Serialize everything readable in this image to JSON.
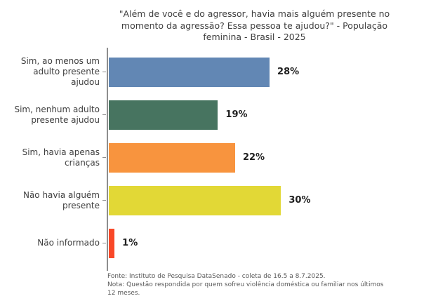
{
  "chart_data": {
    "type": "bar",
    "orientation": "horizontal",
    "title": "\"Além de você e do agressor, havia mais alguém presente no momento da agressão? Essa pessoa te ajudou?\" - População feminina - Brasil - 2025",
    "title_lines": [
      "\"Além de você e do agressor, havia mais alguém presente no",
      "momento da agressão? Essa pessoa te ajudou?\" - População",
      "feminina - Brasil - 2025"
    ],
    "categories": [
      "Sim, ao menos um adulto presente ajudou",
      "Sim, nenhum adulto presente ajudou",
      "Sim, havia apenas crianças",
      "Não havia alguém presente",
      "Não informado"
    ],
    "category_lines": [
      [
        "Sim, ao menos um",
        "adulto presente",
        "ajudou"
      ],
      [
        "Sim, nenhum adulto",
        "presente ajudou"
      ],
      [
        "Sim, havia apenas",
        "crianças"
      ],
      [
        "Não havia alguém",
        "presente"
      ],
      [
        "Não informado"
      ]
    ],
    "values": [
      28,
      19,
      22,
      30,
      1
    ],
    "value_labels": [
      "28%",
      "19%",
      "22%",
      "30%",
      "1%"
    ],
    "colors": [
      "#6287b4",
      "#477460",
      "#f8943e",
      "#e2d836",
      "#f94828"
    ],
    "xlim": [
      0,
      100
    ],
    "grid": false,
    "legend": false,
    "axis_color": "#8e8e8e"
  },
  "footer": {
    "source": "Fonte: Instituto de Pesquisa DataSenado - coleta de 16.5 a 8.7.2025.",
    "note": "Nota: Questão respondida por quem sofreu violência doméstica ou familiar nos últimos 12 meses."
  }
}
